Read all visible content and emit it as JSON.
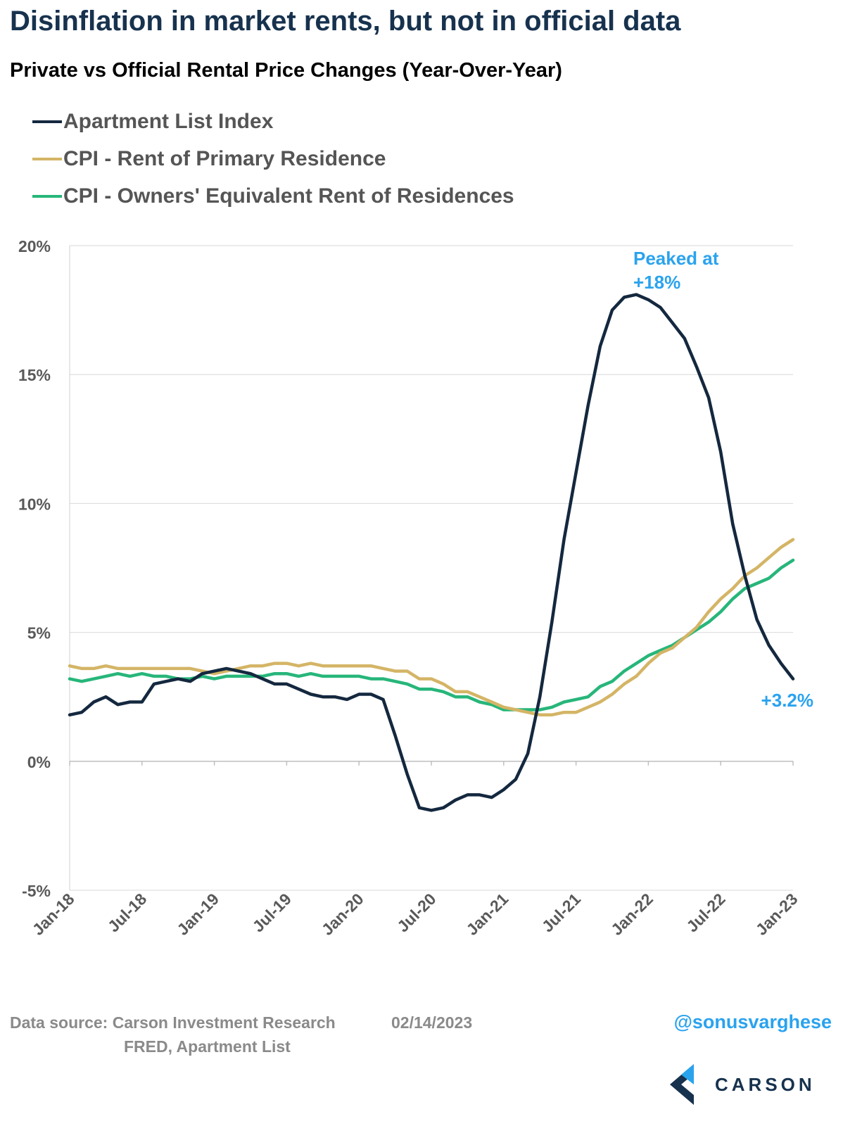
{
  "title": "Disinflation in market rents, but not in official data",
  "subtitle": "Private vs Official Rental Price Changes (Year-Over-Year)",
  "colors": {
    "apartment_list": "#14283f",
    "cpi_rent": "#d4b566",
    "cpi_oer": "#27b67a",
    "annotation": "#2aa3ee",
    "grid": "#d9d9d9",
    "brand": "#17324e"
  },
  "chart_data": {
    "type": "line",
    "x": [
      "Jan-18",
      "Feb-18",
      "Mar-18",
      "Apr-18",
      "May-18",
      "Jun-18",
      "Jul-18",
      "Aug-18",
      "Sep-18",
      "Oct-18",
      "Nov-18",
      "Dec-18",
      "Jan-19",
      "Feb-19",
      "Mar-19",
      "Apr-19",
      "May-19",
      "Jun-19",
      "Jul-19",
      "Aug-19",
      "Sep-19",
      "Oct-19",
      "Nov-19",
      "Dec-19",
      "Jan-20",
      "Feb-20",
      "Mar-20",
      "Apr-20",
      "May-20",
      "Jun-20",
      "Jul-20",
      "Aug-20",
      "Sep-20",
      "Oct-20",
      "Nov-20",
      "Dec-20",
      "Jan-21",
      "Feb-21",
      "Mar-21",
      "Apr-21",
      "May-21",
      "Jun-21",
      "Jul-21",
      "Aug-21",
      "Sep-21",
      "Oct-21",
      "Nov-21",
      "Dec-21",
      "Jan-22",
      "Feb-22",
      "Mar-22",
      "Apr-22",
      "May-22",
      "Jun-22",
      "Jul-22",
      "Aug-22",
      "Sep-22",
      "Oct-22",
      "Nov-22",
      "Dec-22",
      "Jan-23"
    ],
    "x_tick_labels": [
      "Jan-18",
      "Jul-18",
      "Jan-19",
      "Jul-19",
      "Jan-20",
      "Jul-20",
      "Jan-21",
      "Jul-21",
      "Jan-22",
      "Jul-22",
      "Jan-23"
    ],
    "y_tick_labels": [
      "20%",
      "15%",
      "10%",
      "5%",
      "0%",
      "-5%"
    ],
    "y_ticks": [
      20,
      15,
      10,
      5,
      0,
      -5
    ],
    "ylim": [
      -5,
      20
    ],
    "grid": "horizontal",
    "legend_position": "top-left",
    "series": [
      {
        "name": "Apartment List Index",
        "color_key": "apartment_list",
        "values": [
          1.8,
          1.9,
          2.3,
          2.5,
          2.2,
          2.3,
          2.3,
          3.0,
          3.1,
          3.2,
          3.1,
          3.4,
          3.5,
          3.6,
          3.5,
          3.4,
          3.2,
          3.0,
          3.0,
          2.8,
          2.6,
          2.5,
          2.5,
          2.4,
          2.6,
          2.6,
          2.4,
          1.0,
          -0.5,
          -1.8,
          -1.9,
          -1.8,
          -1.5,
          -1.3,
          -1.3,
          -1.4,
          -1.1,
          -0.7,
          0.3,
          2.5,
          5.4,
          8.6,
          11.2,
          13.8,
          16.1,
          17.5,
          18.0,
          18.1,
          17.9,
          17.6,
          17.0,
          16.4,
          15.3,
          14.1,
          12.0,
          9.2,
          7.2,
          5.5,
          4.5,
          3.8,
          3.2
        ]
      },
      {
        "name": "CPI - Rent of Primary Residence",
        "color_key": "cpi_rent",
        "values": [
          3.7,
          3.6,
          3.6,
          3.7,
          3.6,
          3.6,
          3.6,
          3.6,
          3.6,
          3.6,
          3.6,
          3.5,
          3.4,
          3.5,
          3.6,
          3.7,
          3.7,
          3.8,
          3.8,
          3.7,
          3.8,
          3.7,
          3.7,
          3.7,
          3.7,
          3.7,
          3.6,
          3.5,
          3.5,
          3.2,
          3.2,
          3.0,
          2.7,
          2.7,
          2.5,
          2.3,
          2.1,
          2.0,
          1.9,
          1.8,
          1.8,
          1.9,
          1.9,
          2.1,
          2.3,
          2.6,
          3.0,
          3.3,
          3.8,
          4.2,
          4.4,
          4.8,
          5.2,
          5.8,
          6.3,
          6.7,
          7.2,
          7.5,
          7.9,
          8.3,
          8.6
        ]
      },
      {
        "name": "CPI - Owners' Equivalent Rent of Residences",
        "color_key": "cpi_oer",
        "values": [
          3.2,
          3.1,
          3.2,
          3.3,
          3.4,
          3.3,
          3.4,
          3.3,
          3.3,
          3.2,
          3.2,
          3.3,
          3.2,
          3.3,
          3.3,
          3.3,
          3.3,
          3.4,
          3.4,
          3.3,
          3.4,
          3.3,
          3.3,
          3.3,
          3.3,
          3.2,
          3.2,
          3.1,
          3.0,
          2.8,
          2.8,
          2.7,
          2.5,
          2.5,
          2.3,
          2.2,
          2.0,
          2.0,
          2.0,
          2.0,
          2.1,
          2.3,
          2.4,
          2.5,
          2.9,
          3.1,
          3.5,
          3.8,
          4.1,
          4.3,
          4.5,
          4.8,
          5.1,
          5.4,
          5.8,
          6.3,
          6.7,
          6.9,
          7.1,
          7.5,
          7.8
        ]
      }
    ],
    "annotations": [
      {
        "text_line1": "Peaked at",
        "text_line2": "+18%"
      },
      {
        "text": "+3.2%"
      }
    ]
  },
  "footer": {
    "source_line1": "Data source: Carson Investment Research",
    "source_line2": "FRED, Apartment List",
    "date": "02/14/2023",
    "handle": "@sonusvarghese"
  },
  "brand": {
    "name": "CARSON",
    "logo_icon": "carson-chevron-logo"
  }
}
